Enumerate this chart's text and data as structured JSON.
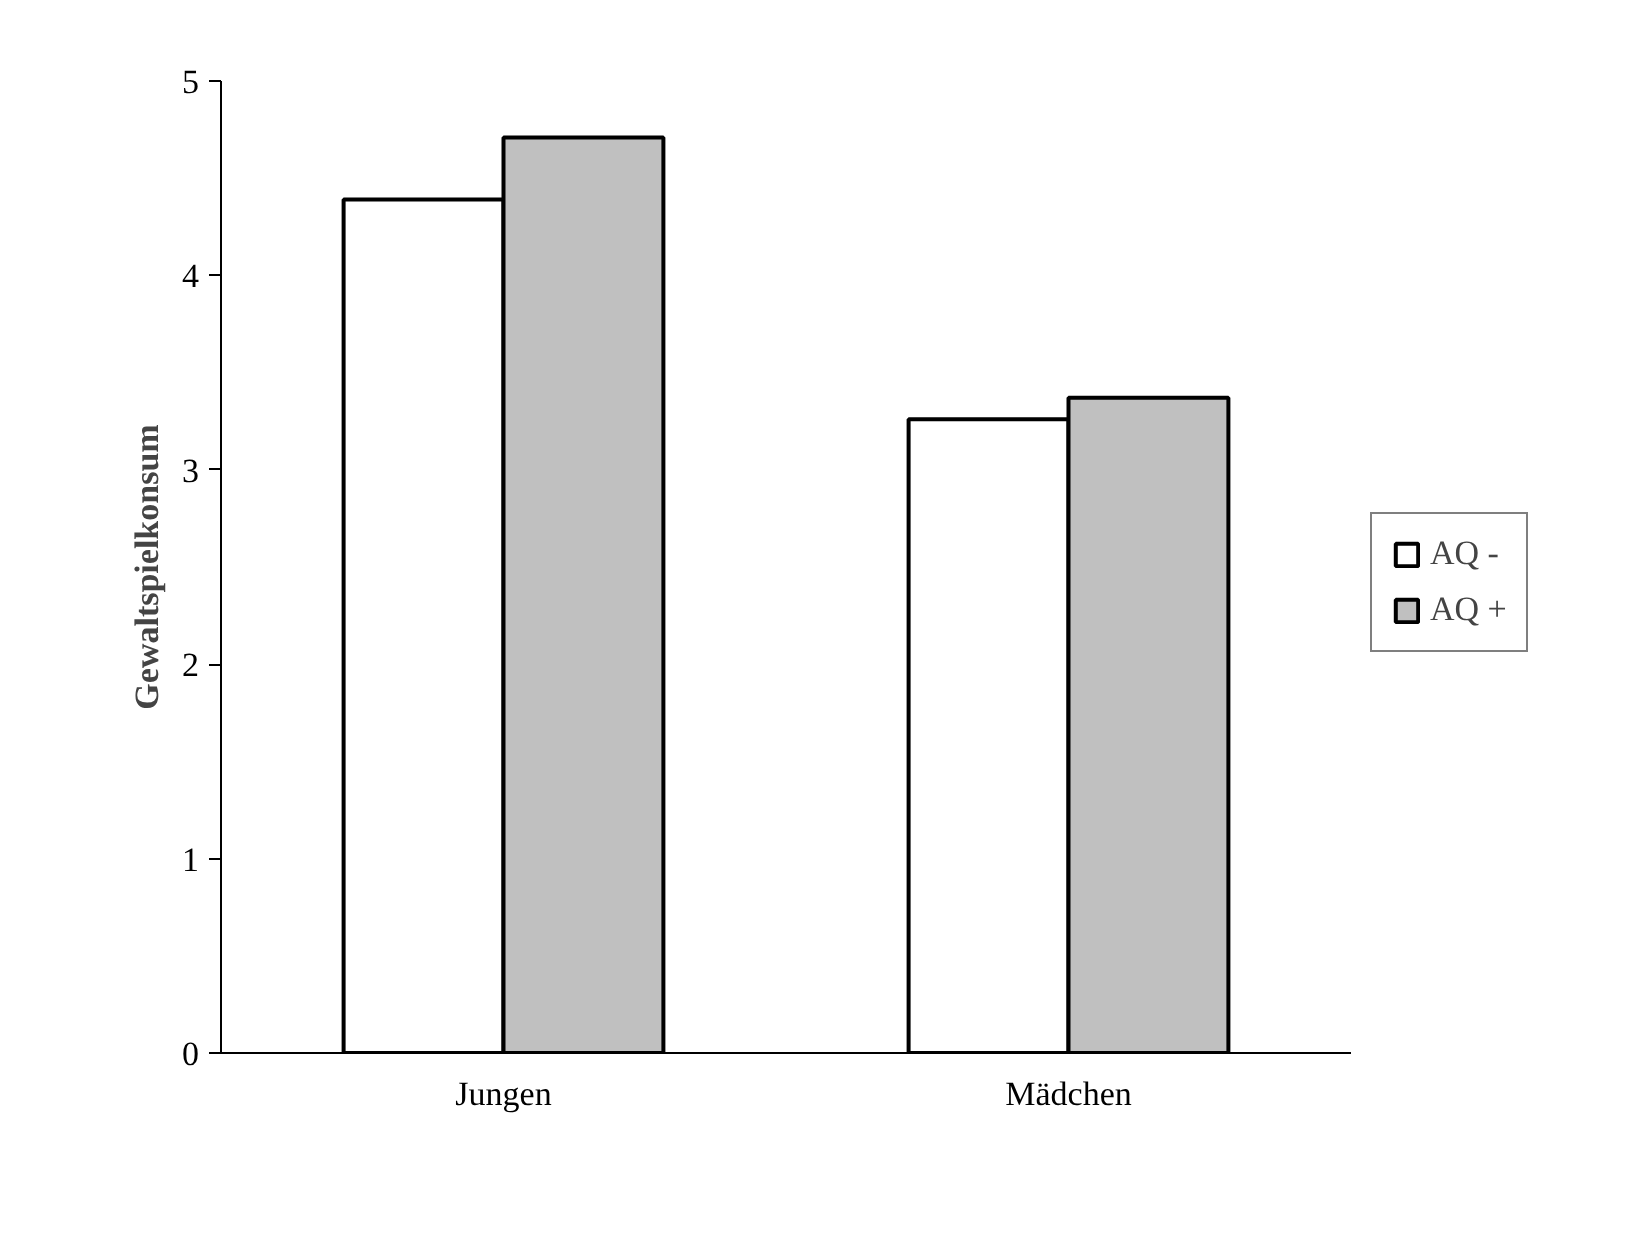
{
  "chart_data": {
    "type": "bar",
    "ylabel": "Gewaltspielkonsum",
    "categories": [
      "Jungen",
      "Mädchen"
    ],
    "series": [
      {
        "name": "AQ -",
        "color": "#ffffff",
        "values": [
          4.39,
          3.26
        ]
      },
      {
        "name": "AQ +",
        "color": "#c0c0c0",
        "values": [
          4.71,
          3.37
        ]
      }
    ],
    "ylim": [
      0,
      5
    ],
    "yticks": [
      0,
      1,
      2,
      3,
      4,
      5
    ],
    "grid": false,
    "legend": "right"
  }
}
